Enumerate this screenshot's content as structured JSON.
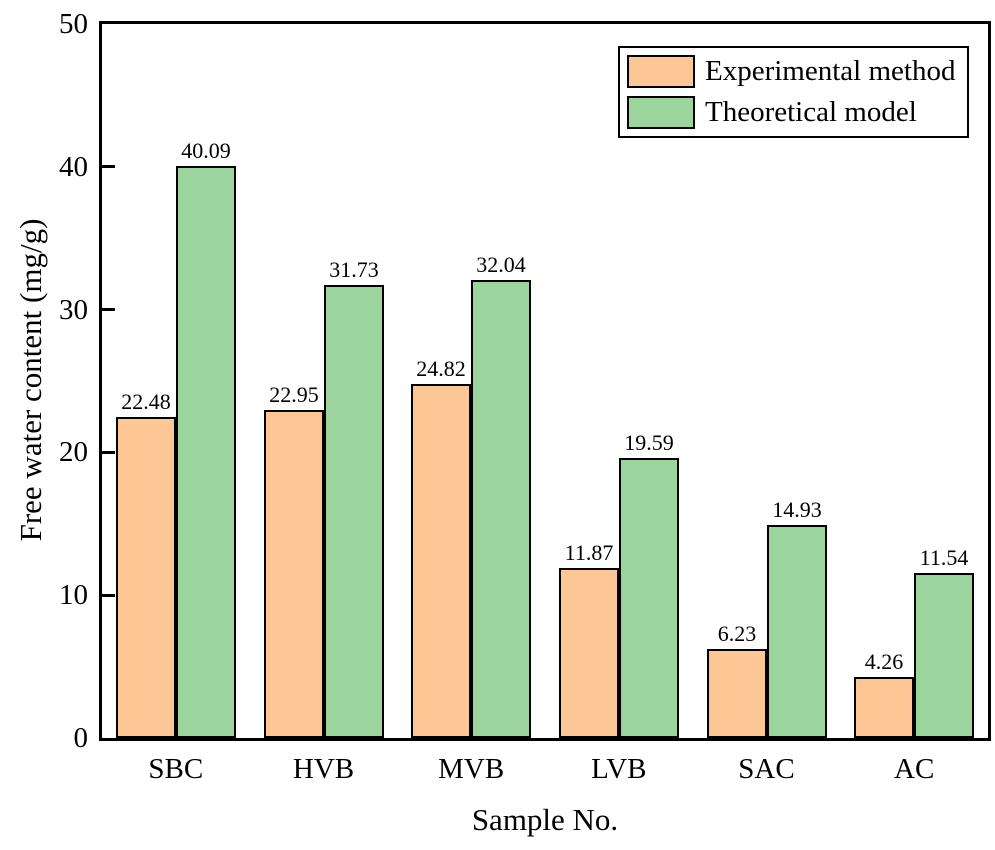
{
  "chart_data": {
    "type": "bar",
    "title": "",
    "xlabel": "Sample No.",
    "ylabel": "Free water content (mg/g)",
    "categories": [
      "SBC",
      "HVB",
      "MVB",
      "LVB",
      "SAC",
      "AC"
    ],
    "series": [
      {
        "name": "Experimental method",
        "color": "#FCC794",
        "values": [
          22.48,
          22.95,
          24.82,
          11.87,
          6.23,
          4.26
        ]
      },
      {
        "name": "Theoretical model",
        "color": "#9CD49E",
        "values": [
          40.09,
          31.73,
          32.04,
          19.59,
          14.93,
          11.54
        ]
      }
    ],
    "ylim": [
      0,
      50
    ],
    "yticks": [
      0,
      10,
      20,
      30,
      40,
      50
    ],
    "bar_edge_color": "#000000",
    "axis_color": "#000000",
    "value_labels": true,
    "grid": false,
    "legend_position": "top-right"
  }
}
